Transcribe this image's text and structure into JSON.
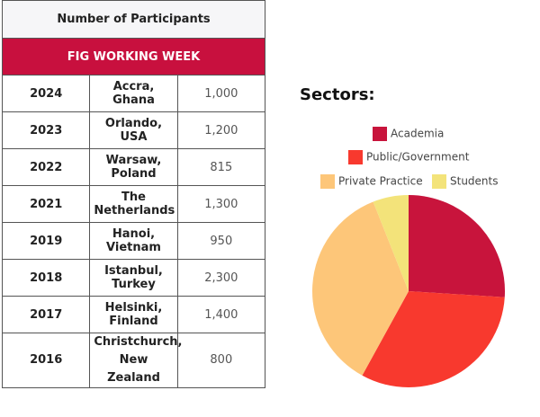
{
  "table": {
    "title": "Number of Participants",
    "banner": "FIG WORKING WEEK",
    "rows": [
      [
        "2024",
        "Accra, Ghana",
        "1,000"
      ],
      [
        "2023",
        "Orlando, USA",
        "1,200"
      ],
      [
        "2022",
        "Warsaw, Poland",
        "815"
      ],
      [
        "2021",
        "The Netherlands",
        "1,300"
      ],
      [
        "2019",
        "Hanoi, Vietnam",
        "950"
      ],
      [
        "2018",
        "Istanbul, Turkey",
        "2,300"
      ],
      [
        "2017",
        "Helsinki, Finland",
        "1,400"
      ],
      [
        "2016",
        "Christchurch, New Zealand",
        "800"
      ]
    ]
  },
  "chart_data": {
    "type": "pie",
    "title": "Sectors:",
    "categories": [
      "Academia",
      "Public/Government",
      "Private Practice",
      "Students"
    ],
    "values": [
      26,
      32,
      36,
      6
    ],
    "colors": [
      "#c8143c",
      "#f8392e",
      "#fdc679",
      "#f3e37a"
    ]
  }
}
